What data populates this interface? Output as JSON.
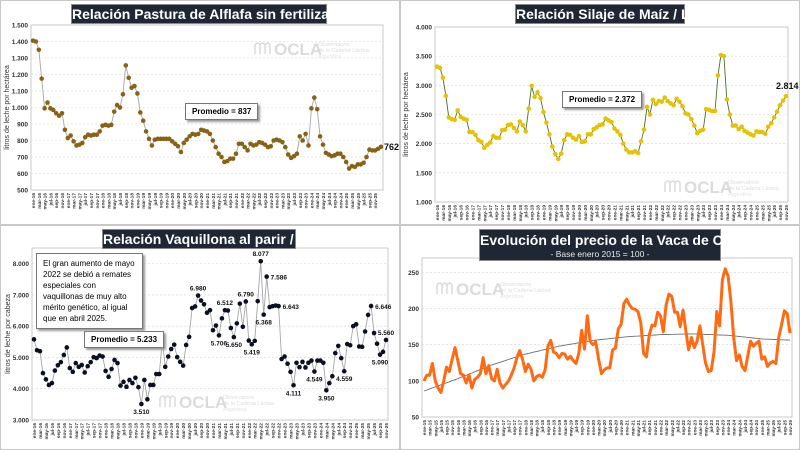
{
  "watermark": {
    "logo": "OCLA",
    "line1": "Observatorio",
    "line2": "de la Cadena Láctea",
    "line3": "Argentina"
  },
  "chart_data": [
    {
      "type": "line",
      "title": "Relación Pastura de Alflafa sin fertilizar / Leche",
      "ylabel": "litros de leche por hectárea",
      "ylim": [
        500,
        1500
      ],
      "yticks": [
        "500",
        "600",
        "700",
        "800",
        "900",
        "1.000",
        "1.100",
        "1.200",
        "1.300",
        "1.400",
        "1.500"
      ],
      "grid": true,
      "line_color": "#a6a6a6",
      "marker_color": "#8a6214",
      "average_label": "Promedio = 837",
      "last_value_label": "762",
      "x_tick_labels": [
        "ene-16",
        "mar-16",
        "may-16",
        "jul-16",
        "sep-16",
        "nov-16",
        "ene-17",
        "mar-17",
        "may-17",
        "jul-17",
        "sep-17",
        "nov-17",
        "ene-18",
        "mar-18",
        "may-18",
        "jul-18",
        "sep-18",
        "nov-18",
        "ene-19",
        "mar-19",
        "may-19",
        "jul-19",
        "sep-19",
        "nov-19",
        "ene-20",
        "mar-20",
        "may-20",
        "jul-20",
        "sep-20",
        "nov-20",
        "ene-21",
        "mar-21",
        "may-21",
        "jul-21",
        "sep-21",
        "nov-21",
        "ene-22",
        "mar-22",
        "may-22",
        "jul-22",
        "sep-22",
        "nov-22",
        "ene-23",
        "mar-23",
        "may-23",
        "jul-23",
        "sep-23",
        "nov-23",
        "ene-24",
        "mar-24",
        "may-24",
        "jul-24",
        "sep-24",
        "nov-24",
        "ene-25",
        "mar-25",
        "may-25",
        "jul-25",
        "sep-25",
        "nov-25"
      ],
      "values": [
        1405,
        1400,
        1350,
        1175,
        995,
        1030,
        995,
        985,
        965,
        950,
        965,
        865,
        815,
        830,
        795,
        770,
        775,
        785,
        820,
        835,
        830,
        835,
        835,
        855,
        890,
        895,
        890,
        895,
        975,
        1015,
        1000,
        1080,
        1255,
        1180,
        1120,
        1130,
        1085,
        970,
        920,
        855,
        810,
        770,
        805,
        810,
        810,
        810,
        810,
        810,
        795,
        780,
        765,
        730,
        785,
        805,
        825,
        840,
        835,
        840,
        865,
        860,
        855,
        840,
        800,
        760,
        720,
        700,
        670,
        675,
        690,
        690,
        720,
        780,
        780,
        760,
        740,
        780,
        770,
        775,
        790,
        785,
        775,
        760,
        765,
        800,
        805,
        800,
        790,
        760,
        715,
        695,
        705,
        720,
        825,
        800,
        840,
        770,
        995,
        1060,
        990,
        825,
        775,
        725,
        715,
        705,
        710,
        720,
        720,
        700,
        670,
        630,
        645,
        640,
        655,
        655,
        665,
        700,
        745,
        740,
        740,
        750,
        762
      ]
    },
    {
      "type": "line",
      "title": "Relación Silaje de Maíz / Leche",
      "ylabel": "litros de leche por hectárea",
      "ylim": [
        1000,
        4000
      ],
      "yticks": [
        "1.000",
        "1.500",
        "2.000",
        "2.500",
        "3.000",
        "3.500",
        "4.000"
      ],
      "grid": true,
      "line_color": "#4e6b2c",
      "marker_color": "#e6c200",
      "average_label": "Promedio = 2.372",
      "last_value_label": "2.814",
      "x_tick_labels": [
        "ene-16",
        "mar-16",
        "may-16",
        "jul-16",
        "sep-16",
        "nov-16",
        "ene-17",
        "mar-17",
        "may-17",
        "jul-17",
        "sep-17",
        "nov-17",
        "ene-18",
        "mar-18",
        "may-18",
        "jul-18",
        "sep-18",
        "nov-18",
        "ene-19",
        "mar-19",
        "may-19",
        "jul-19",
        "sep-19",
        "nov-19",
        "ene-20",
        "mar-20",
        "may-20",
        "jul-20",
        "sep-20",
        "nov-20",
        "ene-21",
        "mar-21",
        "may-21",
        "jul-21",
        "sep-21",
        "nov-21",
        "ene-22",
        "mar-22",
        "may-22",
        "jul-22",
        "sep-22",
        "nov-22",
        "ene-23",
        "mar-23",
        "may-23",
        "jul-23",
        "sep-23",
        "nov-23",
        "ene-24",
        "mar-24",
        "may-24",
        "jul-24",
        "sep-24",
        "nov-24",
        "ene-25",
        "mar-25",
        "may-25",
        "jul-25",
        "sep-25",
        "nov-25"
      ],
      "values": [
        3320,
        3300,
        3130,
        2820,
        2450,
        2420,
        2410,
        2570,
        2460,
        2430,
        2410,
        2200,
        2200,
        2150,
        2060,
        2030,
        1930,
        1980,
        2020,
        2130,
        2100,
        2100,
        2230,
        2240,
        2320,
        2330,
        2270,
        2210,
        2380,
        2320,
        2210,
        2600,
        2990,
        2800,
        2880,
        2780,
        2540,
        2360,
        2160,
        1950,
        1820,
        1740,
        1830,
        2060,
        2160,
        2150,
        2100,
        2070,
        2130,
        2030,
        2040,
        2160,
        2160,
        2250,
        2280,
        2320,
        2330,
        2430,
        2400,
        2370,
        2260,
        2210,
        2150,
        2000,
        1900,
        1850,
        1850,
        1870,
        1840,
        2040,
        2240,
        2630,
        2500,
        2750,
        2680,
        2730,
        2720,
        2790,
        2730,
        2690,
        2660,
        2770,
        2720,
        2640,
        2520,
        2500,
        2420,
        2310,
        2180,
        2220,
        2240,
        2590,
        2580,
        2560,
        2560,
        3170,
        3520,
        3500,
        2760,
        2500,
        2310,
        2310,
        2250,
        2290,
        2220,
        2190,
        2160,
        2140,
        2210,
        2200,
        2200,
        2170,
        2290,
        2350,
        2450,
        2550,
        2660,
        2740,
        2814
      ]
    },
    {
      "type": "line",
      "title": "Relación Vaquillona al parir / Leche",
      "ylabel": "litros de leche por cabeza",
      "ylim": [
        3000,
        8500
      ],
      "yticks": [
        "3.000",
        "4.000",
        "5.000",
        "6.000",
        "7.000",
        "8.000"
      ],
      "grid": true,
      "line_color": "#a6a6a6",
      "marker_color": "#0b1020",
      "average_label": "Promedio = 5.233",
      "note": "El gran  aumento de mayo 2022  se debió a remates especiales con vaquillonas de muy alto mérito genético, al igual que en abril 2025.",
      "data_labels": [
        {
          "index": 36,
          "text": "3.510",
          "pos": "below"
        },
        {
          "index": 55,
          "text": "6.980",
          "pos": "above"
        },
        {
          "index": 62,
          "text": "5.706",
          "pos": "below"
        },
        {
          "index": 64,
          "text": "6.512",
          "pos": "above"
        },
        {
          "index": 67,
          "text": "5.650",
          "pos": "below"
        },
        {
          "index": 71,
          "text": "6.790",
          "pos": "above"
        },
        {
          "index": 73,
          "text": "5.419",
          "pos": "below"
        },
        {
          "index": 76,
          "text": "8.077",
          "pos": "above"
        },
        {
          "index": 77,
          "text": "6.368",
          "pos": "below"
        },
        {
          "index": 78,
          "text": "7.586",
          "pos": "right"
        },
        {
          "index": 82,
          "text": "6.643",
          "pos": "right"
        },
        {
          "index": 87,
          "text": "4.111",
          "pos": "below"
        },
        {
          "index": 94,
          "text": "4.549",
          "pos": "below"
        },
        {
          "index": 98,
          "text": "3.950",
          "pos": "below"
        },
        {
          "index": 104,
          "text": "4.559",
          "pos": "below"
        },
        {
          "index": 113,
          "text": "6.646",
          "pos": "right"
        },
        {
          "index": 116,
          "text": "5.090",
          "pos": "below"
        },
        {
          "index": 118,
          "text": "5.560",
          "pos": "above"
        }
      ],
      "x_tick_labels": [
        "ene-16",
        "mar-16",
        "may-16",
        "jul-16",
        "sep-16",
        "nov-16",
        "ene-17",
        "mar-17",
        "may-17",
        "jul-17",
        "sep-17",
        "nov-17",
        "ene-18",
        "mar-18",
        "may-18",
        "jul-18",
        "sep-18",
        "nov-18",
        "ene-19",
        "mar-19",
        "may-19",
        "jul-19",
        "sep-19",
        "nov-19",
        "ene-20",
        "mar-20",
        "may-20",
        "jul-20",
        "sep-20",
        "nov-20",
        "ene-21",
        "mar-21",
        "may-21",
        "jul-21",
        "sep-21",
        "nov-21",
        "ene-22",
        "mar-22",
        "may-22",
        "jul-22",
        "sep-22",
        "nov-22",
        "ene-23",
        "mar-23",
        "may-23",
        "jul-23",
        "sep-23",
        "nov-23",
        "ene-24",
        "mar-24",
        "may-24",
        "jul-24",
        "sep-24",
        "nov-24",
        "ene-25",
        "mar-25",
        "may-25",
        "jul-25",
        "sep-25",
        "nov-25"
      ],
      "values": [
        5580,
        5230,
        5200,
        4500,
        4300,
        4120,
        4180,
        4580,
        4750,
        4850,
        5080,
        5320,
        4660,
        4540,
        4820,
        4700,
        4760,
        4520,
        4720,
        4850,
        5010,
        4980,
        5060,
        5030,
        4570,
        4380,
        4630,
        4920,
        4820,
        4100,
        4220,
        4060,
        4280,
        4180,
        4350,
        4050,
        3510,
        4280,
        3660,
        4120,
        4120,
        4470,
        4470,
        5550,
        4700,
        5030,
        5270,
        5410,
        5010,
        4860,
        4740,
        5400,
        5660,
        6580,
        6630,
        6980,
        6820,
        6700,
        6430,
        6510,
        5870,
        6020,
        5706,
        6250,
        6512,
        6500,
        5940,
        5650,
        6090,
        6720,
        5980,
        6790,
        5540,
        5419,
        5530,
        6800,
        8077,
        6368,
        7586,
        6610,
        6640,
        6660,
        6643,
        4950,
        5030,
        4800,
        4540,
        4111,
        4830,
        4690,
        4860,
        4680,
        4830,
        4900,
        4549,
        4900,
        4900,
        4830,
        3950,
        4180,
        4400,
        5140,
        5370,
        4980,
        4559,
        5430,
        5390,
        6000,
        6060,
        5350,
        5340,
        5830,
        6360,
        6646,
        5780,
        5440,
        5090,
        5180,
        5560
      ]
    },
    {
      "type": "line",
      "title": "Evolución del precio de la Vaca de Conserva",
      "subtitle": "- Base enero 2015 = 100 -",
      "ylabel": "",
      "ylim": [
        50,
        270
      ],
      "yticks": [
        "50",
        "100",
        "150",
        "200",
        "250"
      ],
      "ytick_values": [
        50,
        100,
        150,
        200,
        250
      ],
      "grid": true,
      "line_color": "#ff6a13",
      "trend_color": "#6e6e6e",
      "trend_yearly": [
        86,
        103,
        122,
        137,
        148,
        156,
        161,
        164,
        165,
        163,
        158,
        156
      ],
      "x_tick_labels": [
        "ene-15",
        "mar-15",
        "may-15",
        "jul-15",
        "sep-15",
        "nov-15",
        "ene-16",
        "mar-16",
        "may-16",
        "jul-16",
        "sep-16",
        "nov-16",
        "ene-17",
        "mar-17",
        "may-17",
        "jul-17",
        "sep-17",
        "nov-17",
        "ene-18",
        "mar-18",
        "may-18",
        "jul-18",
        "sep-18",
        "nov-18",
        "ene-19",
        "mar-19",
        "may-19",
        "jul-19",
        "sep-19",
        "nov-19",
        "ene-20",
        "mar-20",
        "may-20",
        "jul-20",
        "sep-20",
        "nov-20",
        "ene-21",
        "mar-21",
        "may-21",
        "jul-21",
        "sep-21",
        "nov-21",
        "ene-22",
        "mar-22",
        "may-22",
        "jul-22",
        "sep-22",
        "nov-22",
        "ene-23",
        "mar-23",
        "may-23",
        "jul-23",
        "sep-23",
        "nov-23",
        "ene-24",
        "mar-24",
        "may-24",
        "jul-24",
        "sep-24",
        "nov-24",
        "ene-25",
        "mar-25",
        "may-25",
        "jul-25",
        "sep-25",
        "nov-25"
      ],
      "values": [
        100,
        108,
        108,
        124,
        100,
        90,
        84,
        100,
        119,
        113,
        130,
        146,
        128,
        110,
        108,
        97,
        108,
        90,
        102,
        105,
        110,
        132,
        110,
        121,
        103,
        100,
        116,
        97,
        90,
        95,
        100,
        108,
        118,
        132,
        142,
        130,
        113,
        123,
        116,
        100,
        106,
        108,
        105,
        115,
        148,
        156,
        140,
        138,
        132,
        138,
        137,
        130,
        134,
        128,
        124,
        138,
        170,
        144,
        190,
        155,
        150,
        154,
        130,
        110,
        115,
        118,
        118,
        143,
        145,
        172,
        178,
        207,
        213,
        205,
        200,
        199,
        196,
        180,
        138,
        133,
        163,
        177,
        176,
        195,
        190,
        168,
        205,
        220,
        217,
        195,
        195,
        175,
        198,
        170,
        143,
        160,
        146,
        155,
        176,
        150,
        125,
        113,
        114,
        140,
        196,
        176,
        240,
        255,
        245,
        210,
        160,
        128,
        136,
        120,
        114,
        135,
        155,
        148,
        152,
        155,
        130,
        133,
        120,
        125,
        127,
        124,
        160,
        178,
        197,
        193,
        166
      ]
    }
  ]
}
